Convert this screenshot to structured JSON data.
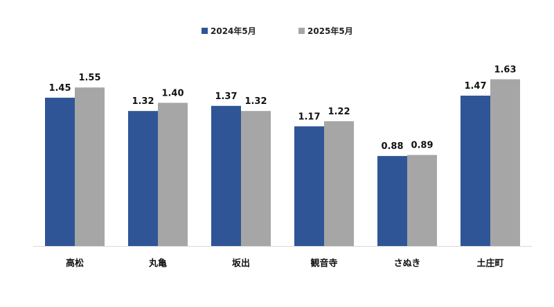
{
  "chart_data": {
    "type": "bar",
    "title": "",
    "xlabel": "",
    "ylabel": "",
    "categories": [
      "高松",
      "丸亀",
      "坂出",
      "観音寺",
      "さぬき",
      "土庄町"
    ],
    "series": [
      {
        "name": "2024年5月",
        "values": [
          1.45,
          1.32,
          1.37,
          1.17,
          0.88,
          1.47
        ],
        "labels": [
          "1.45",
          "1.32",
          "1.37",
          "1.17",
          "0.88",
          "1.47"
        ],
        "color": "#2f5597"
      },
      {
        "name": "2025年5月",
        "values": [
          1.55,
          1.4,
          1.32,
          1.22,
          0.89,
          1.63
        ],
        "labels": [
          "1.55",
          "1.40",
          "1.32",
          "1.22",
          "0.89",
          "1.63"
        ],
        "color": "#a6a6a6"
      }
    ],
    "ylim": [
      0,
      1.77
    ],
    "grid": false,
    "legend": "top-center",
    "axis_color": "#d9d9d9"
  }
}
